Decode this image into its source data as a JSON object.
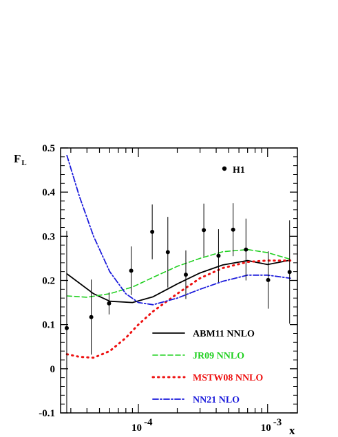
{
  "chart_data": {
    "type": "line",
    "xlabel": "x",
    "ylabel": "F",
    "ylabel_sub": "L",
    "xscale": "log",
    "xlim": [
      2.5e-05,
      0.0017
    ],
    "ylim": [
      -0.1,
      0.5
    ],
    "y_ticks": [
      "-0.1",
      "0",
      "0.1",
      "0.2",
      "0.3",
      "0.4",
      "0.5"
    ],
    "x_tick_labels": [
      {
        "base": "10",
        "exp": "-4",
        "value": 0.0001
      },
      {
        "base": "10",
        "exp": "-3",
        "value": 0.001
      }
    ],
    "grid": false,
    "legend_placement": "bottom-right",
    "data_series": {
      "name": "H1",
      "color": "#000000",
      "points": [
        {
          "x": 2.79e-05,
          "y": 0.092,
          "err": 0.22
        },
        {
          "x": 4.32e-05,
          "y": 0.117,
          "err": 0.085
        },
        {
          "x": 5.93e-05,
          "y": 0.148,
          "err": 0.025
        },
        {
          "x": 8.8e-05,
          "y": 0.222,
          "err": 0.055
        },
        {
          "x": 0.000128,
          "y": 0.31,
          "err": 0.062
        },
        {
          "x": 0.000169,
          "y": 0.264,
          "err": 0.08
        },
        {
          "x": 0.000233,
          "y": 0.213,
          "err": 0.055
        },
        {
          "x": 0.000321,
          "y": 0.314,
          "err": 0.06
        },
        {
          "x": 0.000417,
          "y": 0.256,
          "err": 0.06
        },
        {
          "x": 0.000541,
          "y": 0.315,
          "err": 0.06
        },
        {
          "x": 0.00068,
          "y": 0.27,
          "err": 0.07
        },
        {
          "x": 0.00101,
          "y": 0.201,
          "err": 0.065
        },
        {
          "x": 0.00148,
          "y": 0.219,
          "err": 0.117
        }
      ]
    },
    "series": [
      {
        "name": "ABM11 NNLO",
        "color": "#000000",
        "dash": "solid",
        "x": [
          2.8e-05,
          4.5e-05,
          6e-05,
          9e-05,
          0.00013,
          0.0002,
          0.0003,
          0.00045,
          0.0007,
          0.001,
          0.0015
        ],
        "y": [
          0.215,
          0.17,
          0.153,
          0.15,
          0.163,
          0.192,
          0.217,
          0.235,
          0.245,
          0.236,
          0.246
        ]
      },
      {
        "name": "JR09 NNLO",
        "color": "#1fd01f",
        "dash": "dashed",
        "x": [
          2.8e-05,
          4e-05,
          6e-05,
          9e-05,
          0.00013,
          0.0002,
          0.0003,
          0.00045,
          0.0007,
          0.001,
          0.0015
        ],
        "y": [
          0.165,
          0.162,
          0.17,
          0.185,
          0.207,
          0.232,
          0.25,
          0.265,
          0.27,
          0.263,
          0.248
        ]
      },
      {
        "name": "MSTW08 NNLO",
        "color": "#ee1111",
        "dash": "dotted",
        "x": [
          2.8e-05,
          3.5e-05,
          4.5e-05,
          6e-05,
          8e-05,
          0.0001,
          0.00013,
          0.0002,
          0.0003,
          0.00045,
          0.0007,
          0.001,
          0.0015
        ],
        "y": [
          0.033,
          0.027,
          0.025,
          0.04,
          0.07,
          0.1,
          0.13,
          0.17,
          0.205,
          0.228,
          0.242,
          0.245,
          0.245
        ]
      },
      {
        "name": "NN21 NLO",
        "color": "#1a1adb",
        "dash": "dashdot",
        "x": [
          2.8e-05,
          3.5e-05,
          4.5e-05,
          6e-05,
          8e-05,
          0.0001,
          0.00013,
          0.0002,
          0.0003,
          0.00045,
          0.0007,
          0.001,
          0.0015
        ],
        "y": [
          0.483,
          0.39,
          0.3,
          0.22,
          0.17,
          0.15,
          0.145,
          0.16,
          0.18,
          0.198,
          0.212,
          0.212,
          0.205
        ]
      }
    ]
  }
}
